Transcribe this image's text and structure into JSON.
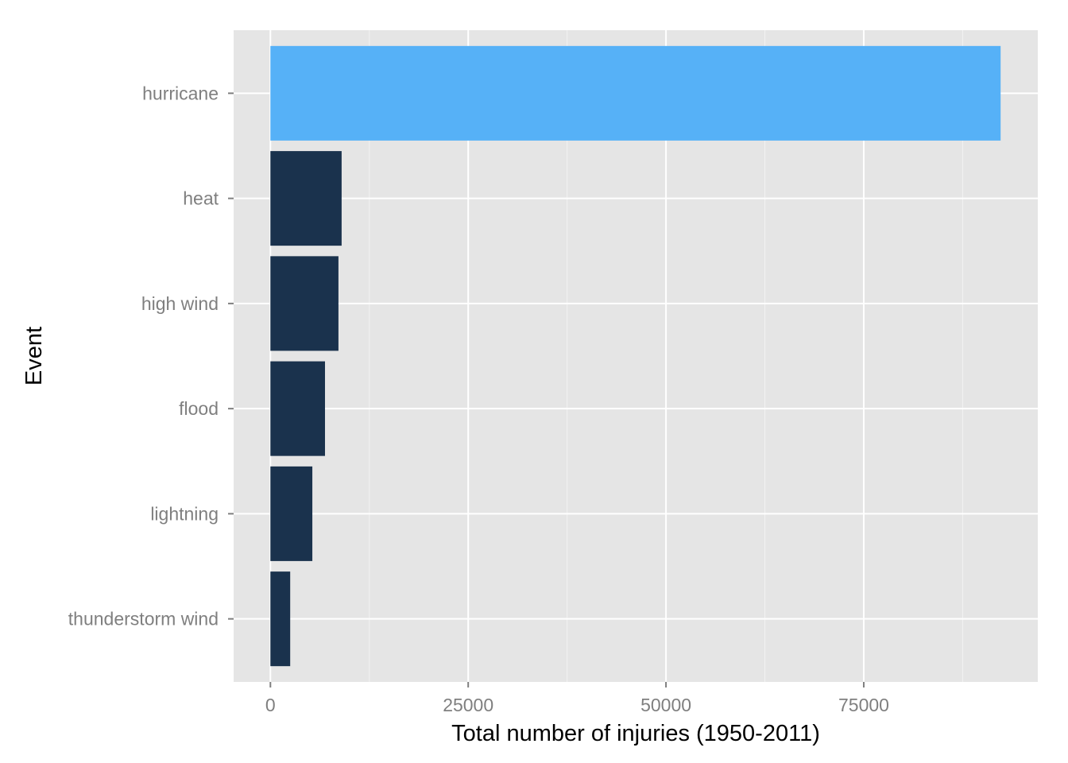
{
  "chart_data": {
    "type": "bar",
    "orientation": "horizontal",
    "categories": [
      "hurricane",
      "heat",
      "high wind",
      "flood",
      "lightning",
      "thunderstorm wind"
    ],
    "values": [
      92300,
      9000,
      8600,
      6900,
      5300,
      2500
    ],
    "highlight": "hurricane",
    "colors": {
      "highlight": "#56b1f7",
      "default": "#1a324d",
      "panel": "#e5e5e5",
      "grid": "#ffffff"
    },
    "xlabel": "Total number of injuries (1950-2011)",
    "ylabel": "Event",
    "xlim": [
      -4650,
      97000
    ],
    "xticks": [
      0,
      25000,
      50000,
      75000
    ],
    "xtick_labels": [
      "0",
      "25000",
      "50000",
      "75000"
    ],
    "grid": true,
    "legend": "none"
  }
}
